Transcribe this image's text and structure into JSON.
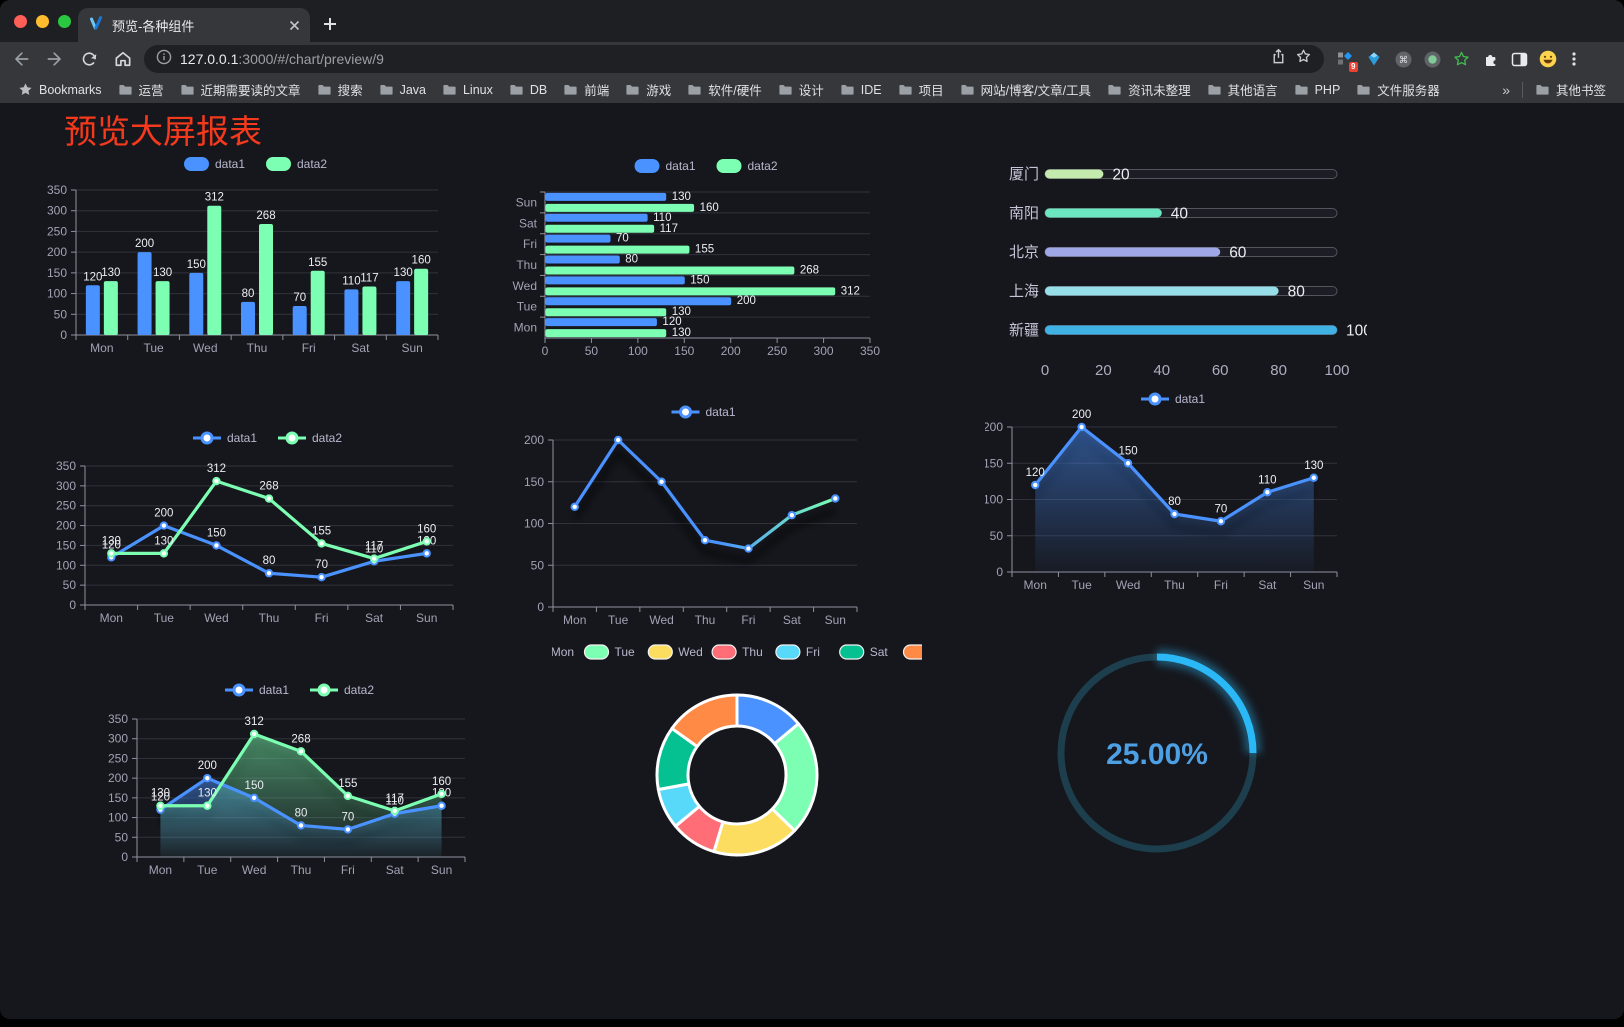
{
  "browser": {
    "tab_title": "预览-各种组件",
    "url_host": "127.0.0.1",
    "url_rest": ":3000/#/chart/preview/9",
    "extension_badge": "9",
    "bookmarks_label": "Bookmarks",
    "bookmarks": [
      "运营",
      "近期需要读的文章",
      "搜索",
      "Java",
      "Linux",
      "DB",
      "前端",
      "游戏",
      "软件/硬件",
      "设计",
      "IDE",
      "项目",
      "网站/博客/文章/工具",
      "资讯未整理",
      "其他语言",
      "PHP",
      "文件服务器"
    ],
    "bookmarks_overflow": "»",
    "other_bookmarks_label": "其他书签"
  },
  "page": {
    "title": "预览大屏报表",
    "title_color": "#f5391c",
    "background": "#16171d"
  },
  "chart_data": [
    {
      "id": "bar-vertical",
      "type": "bar",
      "categories": [
        "Mon",
        "Tue",
        "Wed",
        "Thu",
        "Fri",
        "Sat",
        "Sun"
      ],
      "series": [
        {
          "name": "data1",
          "color": "#4992ff",
          "values": [
            120,
            200,
            150,
            80,
            70,
            110,
            130
          ]
        },
        {
          "name": "data2",
          "color": "#7cffb2",
          "values": [
            130,
            130,
            312,
            268,
            155,
            117,
            160
          ]
        }
      ],
      "ylim": [
        0,
        350
      ],
      "ytick": 50,
      "value_labels": true,
      "legend_position": "top",
      "grid": true
    },
    {
      "id": "bar-horizontal",
      "type": "hbar",
      "categories": [
        "Sun",
        "Sat",
        "Fri",
        "Thu",
        "Wed",
        "Tue",
        "Mon"
      ],
      "series": [
        {
          "name": "data1",
          "color": "#4992ff",
          "values": [
            130,
            110,
            70,
            80,
            150,
            200,
            120
          ]
        },
        {
          "name": "data2",
          "color": "#7cffb2",
          "values": [
            160,
            117,
            155,
            268,
            312,
            130,
            130
          ]
        }
      ],
      "xlim": [
        0,
        350
      ],
      "xtick": 50,
      "value_labels": true,
      "legend_position": "top"
    },
    {
      "id": "progress-list",
      "type": "progress_bars",
      "items": [
        {
          "label": "厦门",
          "value": 20,
          "color": "#c4ebad"
        },
        {
          "label": "南阳",
          "value": 40,
          "color": "#6be6c1"
        },
        {
          "label": "北京",
          "value": 60,
          "color": "#a0a7e6"
        },
        {
          "label": "上海",
          "value": 80,
          "color": "#96dee8"
        },
        {
          "label": "新疆",
          "value": 100,
          "color": "#3fb1e3"
        }
      ],
      "xlim": [
        0,
        100
      ],
      "xticks": [
        0,
        20,
        40,
        60,
        80,
        100
      ]
    },
    {
      "id": "line-basic",
      "type": "line",
      "categories": [
        "Mon",
        "Tue",
        "Wed",
        "Thu",
        "Fri",
        "Sat",
        "Sun"
      ],
      "series": [
        {
          "name": "data1",
          "color": "#4992ff",
          "values": [
            120,
            200,
            150,
            80,
            70,
            110,
            130
          ]
        },
        {
          "name": "data2",
          "color": "#7cffb2",
          "values": [
            130,
            130,
            312,
            268,
            155,
            117,
            160
          ]
        }
      ],
      "ylim": [
        0,
        350
      ],
      "ytick": 50,
      "markers": true,
      "value_labels": true,
      "legend_position": "top"
    },
    {
      "id": "line-gradient",
      "type": "line",
      "categories": [
        "Mon",
        "Tue",
        "Wed",
        "Thu",
        "Fri",
        "Sat",
        "Sun"
      ],
      "series": [
        {
          "name": "data1",
          "gradient": [
            "#4992ff",
            "#7cffb2"
          ],
          "values": [
            120,
            200,
            150,
            80,
            70,
            110,
            130
          ]
        }
      ],
      "ylim": [
        0,
        200
      ],
      "ytick": 50,
      "markers": true,
      "value_labels": false,
      "shadow": true,
      "legend_position": "top"
    },
    {
      "id": "area-single",
      "type": "line",
      "categories": [
        "Mon",
        "Tue",
        "Wed",
        "Thu",
        "Fri",
        "Sat",
        "Sun"
      ],
      "series": [
        {
          "name": "data1",
          "color": "#4992ff",
          "values": [
            120,
            200,
            150,
            80,
            70,
            110,
            130
          ],
          "area": true
        }
      ],
      "ylim": [
        0,
        200
      ],
      "ytick": 50,
      "markers": true,
      "value_labels": true,
      "shadow": true,
      "legend_position": "top"
    },
    {
      "id": "area-double",
      "type": "line",
      "categories": [
        "Mon",
        "Tue",
        "Wed",
        "Thu",
        "Fri",
        "Sat",
        "Sun"
      ],
      "series": [
        {
          "name": "data1",
          "color": "#4992ff",
          "values": [
            120,
            200,
            150,
            80,
            70,
            110,
            130
          ],
          "area": true
        },
        {
          "name": "data2",
          "color": "#7cffb2",
          "values": [
            130,
            130,
            312,
            268,
            155,
            117,
            160
          ],
          "area": true
        }
      ],
      "ylim": [
        0,
        350
      ],
      "ytick": 50,
      "markers": true,
      "value_labels": true,
      "shadow": true,
      "legend_position": "top"
    },
    {
      "id": "donut",
      "type": "pie",
      "inner_radius_ratio": 0.61,
      "border_color": "#ffffff",
      "legend_position": "top",
      "items": [
        {
          "label": "Mon",
          "value": 120,
          "color": "#4992ff"
        },
        {
          "label": "Tue",
          "value": 200,
          "color": "#7cffb2"
        },
        {
          "label": "Wed",
          "value": 150,
          "color": "#fddd60"
        },
        {
          "label": "Thu",
          "value": 80,
          "color": "#ff6e76"
        },
        {
          "label": "Fri",
          "value": 70,
          "color": "#58d9f9"
        },
        {
          "label": "Sat",
          "value": 110,
          "color": "#05c091"
        },
        {
          "label": "Sun",
          "value": 130,
          "color": "#ff8a45"
        }
      ]
    },
    {
      "id": "gauge",
      "type": "gauge",
      "value": 25,
      "display": "25.00%",
      "color": "#2ab8f6",
      "track_color": "#1d3f4d",
      "text_color": "#4da0e4"
    }
  ]
}
